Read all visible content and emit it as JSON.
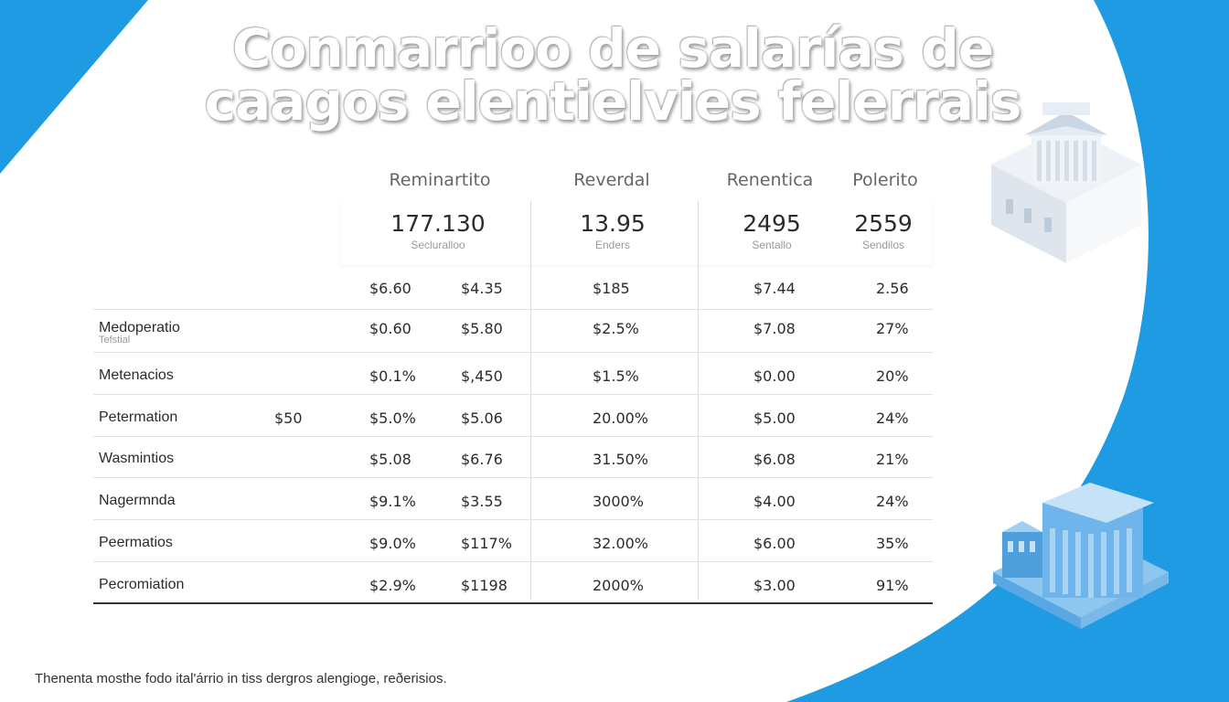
{
  "title": {
    "line1": "Conmarrioo de salarías de",
    "line2": "caagos elentielvies felerrais"
  },
  "column_headers": [
    "Reminartito",
    "Reverdal",
    "Renentica",
    "Polerito"
  ],
  "stats": [
    {
      "value": "177.130",
      "caption": "Secluralloo"
    },
    {
      "value": "13.95",
      "caption": "Enders"
    },
    {
      "value": "2495",
      "caption": "Sentallo"
    },
    {
      "value": "2559",
      "caption": "Sendilos"
    }
  ],
  "rows": [
    {
      "label": "",
      "sublabel": "",
      "extra": "",
      "c1": "$6.60",
      "c2": "$4.35",
      "c3": "$185",
      "c4": "$7.44",
      "c5": "2.56"
    },
    {
      "label": "Medoperatio",
      "sublabel": "Tefstial",
      "extra": "",
      "c1": "$0.60",
      "c2": "$5.80",
      "c3": "$2.5%",
      "c4": "$7.08",
      "c5": "27%"
    },
    {
      "label": "Metenacios",
      "sublabel": "",
      "extra": "",
      "c1": "$0.1%",
      "c2": "$,450",
      "c3": "$1.5%",
      "c4": "$0.00",
      "c5": "20%"
    },
    {
      "label": "Petermation",
      "sublabel": "",
      "extra": "$50",
      "c1": "$5.0%",
      "c2": "$5.06",
      "c3": "20.00%",
      "c4": "$5.00",
      "c5": "24%"
    },
    {
      "label": "Wasmintios",
      "sublabel": "",
      "extra": "",
      "c1": "$5.08",
      "c2": "$6.76",
      "c3": "31.50%",
      "c4": "$6.08",
      "c5": "21%"
    },
    {
      "label": "Nagermnda",
      "sublabel": "",
      "extra": "",
      "c1": "$9.1%",
      "c2": "$3.55",
      "c3": "3000%",
      "c4": "$4.00",
      "c5": "24%"
    },
    {
      "label": "Peermatios",
      "sublabel": "",
      "extra": "",
      "c1": "$9.0%",
      "c2": "$117%",
      "c3": "32.00%",
      "c4": "$6.00",
      "c5": "35%"
    },
    {
      "label": "Pecromiation",
      "sublabel": "",
      "extra": "",
      "c1": "$2.9%",
      "c2": "$1198",
      "c3": "2000%",
      "c4": "$3.00",
      "c5": "91%"
    }
  ],
  "footnote": "Thenenta mosthe fodo ital'árrio in tiss dergros alengioge, reðerisios.",
  "colors": {
    "accent_blue": "#1e9be3",
    "building_top": "#d9e6f1",
    "building_blue": "#6fb4ea"
  },
  "icons": [
    "government-building-icon",
    "government-building-blue-icon"
  ]
}
